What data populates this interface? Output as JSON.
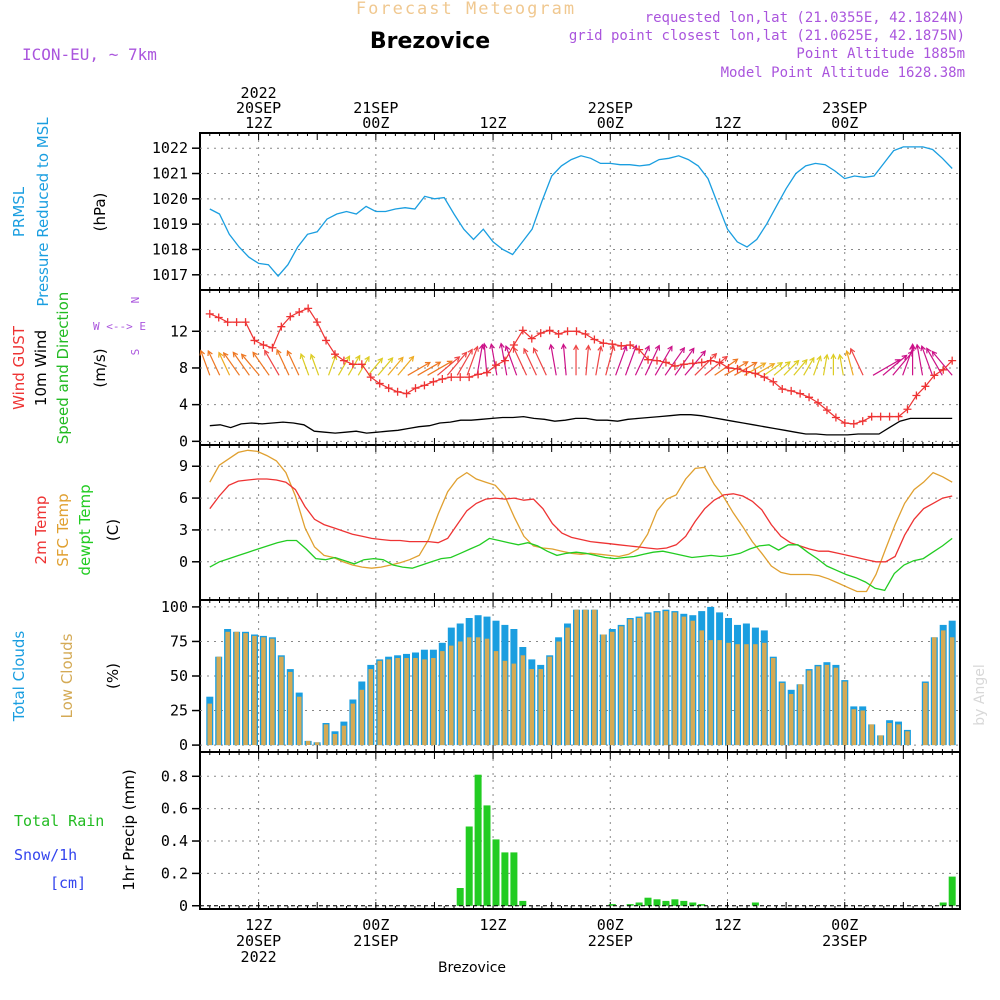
{
  "header": {
    "supertitle": "Forecast Meteogram",
    "station": "Brezovice",
    "model": "ICON-EU, ~ 7km",
    "info": [
      "requested lon,lat (21.0355E, 42.1824N)",
      "grid point closest lon,lat (21.0625E, 42.1875N)",
      "Point Altitude 1885m",
      "Model Point Altitude 1628.38m"
    ],
    "footer_station": "Brezovice",
    "watermark": "by Angel"
  },
  "colors": {
    "prmsl": "#1a9ee0",
    "gust": "#ee3333",
    "wind": "#000000",
    "dir_label": "#22bb22",
    "temp2m": "#ee3333",
    "sfc": "#e0a030",
    "dewpt": "#22cc22",
    "total_clouds": "#1a9ee0",
    "low_clouds": "#d4aa55",
    "rain": "#22cc22",
    "snow": "#3344ee",
    "header_purple": "#aa55dd",
    "supertitle": "#f0c890"
  },
  "time_axis": {
    "top_labels": [
      {
        "h": 12,
        "lines": [
          "2022",
          "20SEP",
          "12Z"
        ]
      },
      {
        "h": 24,
        "lines": [
          "21SEP",
          "00Z"
        ]
      },
      {
        "h": 36,
        "lines": [
          "12Z"
        ]
      },
      {
        "h": 48,
        "lines": [
          "22SEP",
          "00Z"
        ]
      },
      {
        "h": 60,
        "lines": [
          "12Z"
        ]
      },
      {
        "h": 72,
        "lines": [
          "23SEP",
          "00Z"
        ]
      }
    ],
    "bottom_labels": [
      {
        "h": 12,
        "lines": [
          "12Z",
          "20SEP",
          "2022"
        ]
      },
      {
        "h": 24,
        "lines": [
          "00Z",
          "21SEP"
        ]
      },
      {
        "h": 36,
        "lines": [
          "12Z"
        ]
      },
      {
        "h": 48,
        "lines": [
          "00Z",
          "22SEP"
        ]
      },
      {
        "h": 60,
        "lines": [
          "12Z"
        ]
      },
      {
        "h": 72,
        "lines": [
          "00Z",
          "23SEP"
        ]
      }
    ]
  },
  "chart_data": [
    {
      "type": "line",
      "name": "prmsl",
      "ylabels": [
        "PRMSL",
        "Pressure Reduced to MSL"
      ],
      "unit": "(hPa)",
      "ylim": [
        1016.4,
        1022.6
      ],
      "yticks": [
        1017,
        1018,
        1019,
        1020,
        1021,
        1022
      ],
      "start_hour": 7,
      "end_hour": 83,
      "series": [
        {
          "key": "prmsl",
          "values": [
            1019.6,
            1019.4,
            1018.6,
            1018.1,
            1017.7,
            1017.45,
            1017.4,
            1016.95,
            1017.4,
            1018.1,
            1018.6,
            1018.7,
            1019.2,
            1019.4,
            1019.5,
            1019.4,
            1019.7,
            1019.5,
            1019.5,
            1019.6,
            1019.65,
            1019.6,
            1020.1,
            1020.0,
            1020.05,
            1019.4,
            1018.8,
            1018.4,
            1018.8,
            1018.3,
            1018.0,
            1017.8,
            1018.3,
            1018.8,
            1019.9,
            1020.9,
            1021.3,
            1021.55,
            1021.7,
            1021.6,
            1021.4,
            1021.4,
            1021.35,
            1021.35,
            1021.3,
            1021.35,
            1021.55,
            1021.6,
            1021.7,
            1021.55,
            1021.3,
            1020.8,
            1019.8,
            1018.8,
            1018.3,
            1018.1,
            1018.4,
            1019.0,
            1019.7,
            1020.4,
            1021.0,
            1021.3,
            1021.4,
            1021.35,
            1021.1,
            1020.8,
            1020.9,
            1020.85,
            1020.9,
            1021.4,
            1021.9,
            1022.05,
            1022.05,
            1022.05,
            1021.95,
            1021.6,
            1021.2
          ]
        }
      ]
    },
    {
      "type": "line",
      "name": "wind",
      "ylabels": [
        "Wind GUST",
        "10m Wind",
        "Speed and Direction"
      ],
      "unit": "(m/s)",
      "ylim": [
        -0.4,
        16.5
      ],
      "yticks": [
        0,
        4,
        8,
        12
      ],
      "compass": [
        "N",
        "W <--> E",
        "S"
      ],
      "start_hour": 7,
      "end_hour": 83,
      "series": [
        {
          "key": "gust",
          "values": [
            13.9,
            13.5,
            13.0,
            13.0,
            13.0,
            11.0,
            10.5,
            10.2,
            12.5,
            13.6,
            14.1,
            14.5,
            13.0,
            11.0,
            9.5,
            8.8,
            8.4,
            8.4,
            7.0,
            6.3,
            5.8,
            5.4,
            5.2,
            5.8,
            6.1,
            6.5,
            6.8,
            7.0,
            7.0,
            7.0,
            7.3,
            7.5,
            8.3,
            8.8,
            10.5,
            12.1,
            11.2,
            11.8,
            12.1,
            11.7,
            12.0,
            12.0,
            11.7,
            11.1,
            10.7,
            10.6,
            10.4,
            10.5,
            10.0,
            8.9,
            8.8,
            8.6,
            8.2,
            8.4,
            8.5,
            8.6,
            8.8,
            8.6,
            8.0,
            7.9,
            7.6,
            7.4,
            7.0,
            6.5,
            5.7,
            5.5,
            5.2,
            4.8,
            4.2,
            3.4,
            2.6,
            2.0,
            1.9,
            2.2,
            2.7,
            2.7,
            2.7,
            2.7,
            3.5,
            5.0,
            6.0,
            7.2,
            7.8,
            8.8
          ]
        },
        {
          "key": "wind",
          "values": [
            1.7,
            1.8,
            1.5,
            1.9,
            2.0,
            1.9,
            2.0,
            2.1,
            2.0,
            1.8,
            1.1,
            1.0,
            0.9,
            1.0,
            1.1,
            0.9,
            1.0,
            1.1,
            1.2,
            1.4,
            1.6,
            1.7,
            2.0,
            2.1,
            2.3,
            2.3,
            2.4,
            2.5,
            2.6,
            2.6,
            2.7,
            2.5,
            2.4,
            2.2,
            2.3,
            2.5,
            2.5,
            2.3,
            2.3,
            2.2,
            2.4,
            2.5,
            2.6,
            2.7,
            2.8,
            2.9,
            2.9,
            2.8,
            2.6,
            2.4,
            2.2,
            2.0,
            1.8,
            1.6,
            1.4,
            1.2,
            1.0,
            0.8,
            0.8,
            0.7,
            0.7,
            0.7,
            0.8,
            0.8,
            0.8,
            1.5,
            2.2,
            2.5,
            2.5,
            2.5,
            2.5,
            2.5
          ]
        }
      ],
      "direction_arrows": {
        "hour_step": 1,
        "angles_deg": [
          20,
          25,
          25,
          35,
          35,
          40,
          35,
          30,
          25,
          25,
          20,
          20,
          340,
          330,
          330,
          330,
          320,
          320,
          320,
          320,
          300,
          300,
          300,
          310,
          320,
          330,
          340,
          350,
          5,
          10,
          10,
          20,
          25,
          25,
          25,
          10,
          5,
          0,
          355,
          350,
          345,
          340,
          340,
          335,
          335,
          330,
          325,
          325,
          320,
          315,
          310,
          305,
          300,
          300,
          300,
          300,
          305,
          310,
          315,
          320,
          330,
          340,
          350,
          0,
          10,
          15,
          25,
          300,
          310,
          320,
          340,
          0,
          10,
          20,
          30,
          40
        ],
        "colors_by_speed": [
          "#22cc22",
          "#88cc22",
          "#ddcc22",
          "#eeaa22",
          "#ee7722",
          "#ee4444",
          "#cc1188"
        ]
      }
    },
    {
      "type": "line",
      "name": "temperature",
      "ylabels": [
        "2m Temp",
        "SFC Temp",
        "dewpt Temp"
      ],
      "unit": "(C)",
      "ylim": [
        -3.6,
        11.0
      ],
      "yticks": [
        0,
        3,
        6,
        9
      ],
      "start_hour": 7,
      "end_hour": 83,
      "series": [
        {
          "key": "temp2m",
          "values": [
            5.0,
            6.2,
            7.2,
            7.6,
            7.7,
            7.8,
            7.8,
            7.7,
            7.5,
            6.8,
            5.2,
            4.0,
            3.5,
            3.2,
            2.9,
            2.6,
            2.4,
            2.2,
            2.1,
            2.0,
            2.0,
            1.9,
            1.9,
            1.9,
            1.8,
            2.2,
            3.5,
            4.8,
            5.5,
            5.9,
            6.0,
            5.9,
            6.0,
            5.8,
            5.9,
            5.0,
            3.6,
            2.7,
            2.3,
            2.1,
            1.9,
            1.8,
            1.7,
            1.6,
            1.5,
            1.4,
            1.3,
            1.2,
            1.3,
            1.6,
            2.4,
            3.8,
            5.0,
            5.8,
            6.3,
            6.4,
            6.2,
            5.7,
            4.9,
            3.5,
            2.4,
            1.8,
            1.5,
            1.2,
            1.0,
            1.0,
            0.8,
            0.6,
            0.4,
            0.2,
            0.0,
            0.0,
            0.5,
            2.5,
            4.0,
            5.0,
            5.5,
            6.0,
            6.2
          ]
        },
        {
          "key": "sfc",
          "values": [
            7.5,
            9.1,
            9.7,
            10.3,
            10.5,
            10.4,
            10.0,
            9.5,
            8.4,
            6.2,
            3.2,
            1.4,
            0.6,
            0.4,
            0.0,
            -0.3,
            -0.5,
            -0.6,
            -0.5,
            -0.3,
            -0.1,
            0.2,
            0.6,
            2.1,
            4.5,
            6.6,
            7.8,
            8.4,
            7.8,
            7.5,
            7.2,
            6.2,
            4.2,
            2.4,
            1.5,
            1.3,
            1.2,
            1.0,
            0.8,
            0.7,
            0.8,
            0.7,
            0.6,
            0.5,
            0.7,
            1.2,
            2.6,
            4.8,
            5.9,
            6.3,
            7.8,
            8.8,
            8.9,
            7.3,
            6.1,
            4.6,
            3.3,
            1.9,
            0.8,
            -0.4,
            -1.0,
            -1.2,
            -1.2,
            -1.2,
            -1.3,
            -1.6,
            -2.0,
            -2.4,
            -2.8,
            -2.8,
            -1.2,
            1.2,
            3.5,
            5.5,
            6.8,
            7.5,
            8.4,
            8.0,
            7.5
          ]
        },
        {
          "key": "dewpt",
          "values": [
            -0.5,
            0.0,
            0.3,
            0.6,
            0.9,
            1.2,
            1.5,
            1.8,
            2.0,
            2.0,
            1.2,
            0.3,
            0.2,
            0.4,
            0.1,
            -0.2,
            0.2,
            0.3,
            0.2,
            -0.3,
            -0.5,
            -0.6,
            -0.3,
            0.0,
            0.3,
            0.4,
            0.8,
            1.2,
            1.6,
            2.2,
            2.0,
            1.8,
            1.6,
            1.8,
            1.5,
            1.0,
            0.6,
            0.8,
            0.9,
            0.8,
            0.6,
            0.4,
            0.3,
            0.4,
            0.5,
            0.7,
            0.9,
            1.0,
            0.8,
            0.6,
            0.4,
            0.5,
            0.6,
            0.5,
            0.6,
            0.8,
            1.2,
            1.5,
            1.6,
            1.1,
            1.6,
            1.6,
            0.9,
            0.3,
            -0.4,
            -0.8,
            -1.2,
            -1.5,
            -1.9,
            -2.5,
            -2.7,
            -1.1,
            -0.3,
            0.1,
            0.3,
            0.9,
            1.5,
            2.2
          ]
        }
      ]
    },
    {
      "type": "bar",
      "name": "clouds",
      "ylabels": [
        "Total Clouds",
        "Low Clouds"
      ],
      "unit": "(%)",
      "ylim": [
        -5,
        105
      ],
      "yticks": [
        0,
        25,
        50,
        75,
        100
      ],
      "start_hour": 7,
      "end_hour": 83,
      "series": [
        {
          "key": "total",
          "values": [
            35,
            64,
            84,
            82,
            82,
            80,
            79,
            78,
            65,
            55,
            38,
            3,
            2,
            16,
            10,
            17,
            33,
            46,
            58,
            62,
            64,
            65,
            66,
            67,
            69,
            69,
            74,
            85,
            88,
            92,
            94,
            93,
            90,
            87,
            84,
            71,
            62,
            58,
            65,
            78,
            88,
            98,
            98,
            98,
            80,
            84,
            87,
            92,
            93,
            96,
            97,
            98,
            97,
            95,
            94,
            97,
            100,
            96,
            92,
            87,
            88,
            85,
            83,
            64,
            46,
            40,
            44,
            55,
            58,
            60,
            58,
            47,
            28,
            28,
            15,
            7,
            18,
            17,
            11,
            0,
            46,
            78,
            87,
            90
          ]
        },
        {
          "key": "low",
          "values": [
            30,
            64,
            82,
            82,
            81,
            79,
            78,
            77,
            64,
            53,
            35,
            3,
            2,
            15,
            8,
            14,
            30,
            40,
            55,
            61,
            62,
            63,
            63,
            63,
            62,
            63,
            68,
            72,
            75,
            78,
            78,
            77,
            68,
            61,
            59,
            65,
            55,
            55,
            64,
            75,
            85,
            98,
            98,
            98,
            80,
            82,
            86,
            91,
            92,
            95,
            96,
            97,
            96,
            93,
            90,
            83,
            76,
            76,
            74,
            73,
            73,
            73,
            74,
            63,
            45,
            37,
            44,
            54,
            57,
            58,
            56,
            46,
            26,
            25,
            15,
            7,
            16,
            15,
            10,
            0,
            45,
            78,
            83,
            78
          ]
        }
      ]
    },
    {
      "type": "bar",
      "name": "precip",
      "ylabels": [
        "1hr Precip (mm)"
      ],
      "side_labels": [
        "Total Rain",
        "Snow/1h",
        "[cm]"
      ],
      "ylim": [
        -0.02,
        0.95
      ],
      "yticks": [
        0,
        0.2,
        0.4,
        0.6,
        0.8
      ],
      "start_hour": 7,
      "end_hour": 83,
      "series": [
        {
          "key": "rain",
          "values": [
            0,
            0,
            0,
            0,
            0,
            0,
            0,
            0,
            0,
            0,
            0,
            0,
            0,
            0,
            0,
            0,
            0,
            0,
            0,
            0,
            0,
            0,
            0,
            0,
            0,
            0,
            0,
            0,
            0.11,
            0.49,
            0.81,
            0.62,
            0.41,
            0.33,
            0.33,
            0.03,
            0,
            0,
            0,
            0,
            0,
            0,
            0,
            0,
            0,
            0.01,
            0,
            0.01,
            0.02,
            0.05,
            0.04,
            0.03,
            0.04,
            0.03,
            0.02,
            0.01,
            0,
            0,
            0,
            0,
            0,
            0.02,
            0,
            0,
            0,
            0,
            0,
            0,
            0,
            0,
            0,
            0,
            0,
            0,
            0,
            0,
            0,
            0,
            0,
            0,
            0,
            0,
            0.02,
            0.18
          ]
        }
      ]
    }
  ]
}
